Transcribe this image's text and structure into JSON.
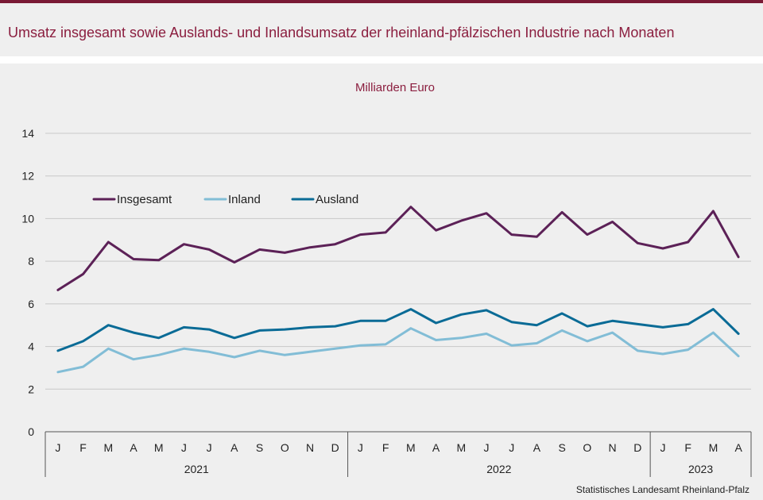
{
  "header": {
    "title": "Umsatz insgesamt sowie Auslands- und Inlandsumsatz der rheinland-pfälzischen Industrie nach Monaten"
  },
  "source": "Statistisches Landesamt  Rheinland-Pfalz",
  "colors": {
    "title": "#8b1e3f",
    "Insgesamt": "#5c2157",
    "Inland": "#82bdd6",
    "Ausland": "#0a6b96"
  },
  "chart_data": {
    "type": "line",
    "unit_label": "Milliarden Euro",
    "ylim": [
      0,
      14
    ],
    "yticks": [
      0,
      2,
      4,
      6,
      8,
      10,
      12,
      14
    ],
    "grid": true,
    "legend_position": "top-left",
    "categories": [
      "J",
      "F",
      "M",
      "A",
      "M",
      "J",
      "J",
      "A",
      "S",
      "O",
      "N",
      "D",
      "J",
      "F",
      "M",
      "A",
      "M",
      "J",
      "J",
      "A",
      "S",
      "O",
      "N",
      "D",
      "J",
      "F",
      "M",
      "A"
    ],
    "year_groups": [
      {
        "label": "2021",
        "months": 12
      },
      {
        "label": "2022",
        "months": 12
      },
      {
        "label": "2023",
        "months": 4
      }
    ],
    "series": [
      {
        "name": "Insgesamt",
        "values": [
          6.65,
          7.4,
          8.9,
          8.1,
          8.05,
          8.8,
          8.55,
          7.95,
          8.55,
          8.4,
          8.65,
          8.8,
          9.25,
          9.35,
          10.55,
          9.45,
          9.9,
          10.25,
          9.25,
          9.15,
          10.3,
          9.25,
          9.85,
          8.85,
          8.6,
          8.9,
          10.35,
          8.2
        ]
      },
      {
        "name": "Inland",
        "values": [
          2.8,
          3.05,
          3.9,
          3.4,
          3.6,
          3.9,
          3.75,
          3.5,
          3.8,
          3.6,
          3.75,
          3.9,
          4.05,
          4.1,
          4.85,
          4.3,
          4.4,
          4.6,
          4.05,
          4.15,
          4.75,
          4.25,
          4.65,
          3.8,
          3.65,
          3.85,
          4.65,
          3.55
        ]
      },
      {
        "name": "Ausland",
        "values": [
          3.8,
          4.25,
          5.0,
          4.65,
          4.4,
          4.9,
          4.8,
          4.4,
          4.75,
          4.8,
          4.9,
          4.95,
          5.2,
          5.2,
          5.75,
          5.1,
          5.5,
          5.7,
          5.15,
          5.0,
          5.55,
          4.95,
          5.2,
          5.05,
          4.9,
          5.05,
          5.75,
          4.6
        ]
      }
    ]
  }
}
